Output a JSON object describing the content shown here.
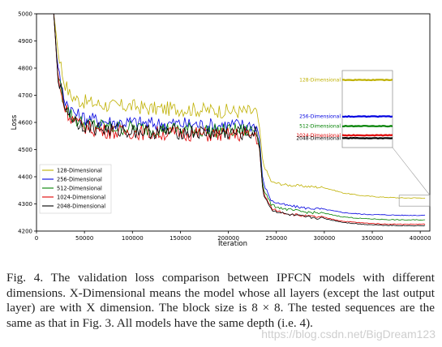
{
  "chart_data": {
    "type": "line",
    "xlabel": "Iteration",
    "ylabel": "Loss",
    "xlim": [
      0,
      410000
    ],
    "ylim": [
      4200,
      5000
    ],
    "xticks": [
      0,
      50000,
      100000,
      150000,
      200000,
      250000,
      300000,
      350000,
      400000
    ],
    "yticks": [
      4200,
      4300,
      4400,
      4500,
      4600,
      4700,
      4800,
      4900,
      5000
    ],
    "legend_position": "lower-left",
    "inset": {
      "position": "right",
      "zoom_region_x": [
        378000,
        410000
      ],
      "zoom_region_y": [
        4292,
        4332
      ]
    },
    "series": [
      {
        "name": "128-Dimensional",
        "color": "#bfb000",
        "values": [
          {
            "x": 0,
            "y": 5000
          },
          {
            "x": 18000,
            "y": 5000
          },
          {
            "x": 22000,
            "y": 4880
          },
          {
            "x": 28000,
            "y": 4760
          },
          {
            "x": 35000,
            "y": 4700
          },
          {
            "x": 45000,
            "y": 4680
          },
          {
            "x": 60000,
            "y": 4670
          },
          {
            "x": 80000,
            "y": 4660
          },
          {
            "x": 100000,
            "y": 4660
          },
          {
            "x": 120000,
            "y": 4650
          },
          {
            "x": 150000,
            "y": 4650
          },
          {
            "x": 180000,
            "y": 4645
          },
          {
            "x": 210000,
            "y": 4640
          },
          {
            "x": 228000,
            "y": 4640
          },
          {
            "x": 232000,
            "y": 4600
          },
          {
            "x": 236000,
            "y": 4450
          },
          {
            "x": 245000,
            "y": 4380
          },
          {
            "x": 260000,
            "y": 4370
          },
          {
            "x": 280000,
            "y": 4365
          },
          {
            "x": 300000,
            "y": 4360
          },
          {
            "x": 320000,
            "y": 4340
          },
          {
            "x": 340000,
            "y": 4330
          },
          {
            "x": 360000,
            "y": 4325
          },
          {
            "x": 380000,
            "y": 4322
          },
          {
            "x": 405000,
            "y": 4322
          }
        ]
      },
      {
        "name": "256-Dimensional",
        "color": "#0000e0",
        "values": [
          {
            "x": 0,
            "y": 5000
          },
          {
            "x": 18000,
            "y": 5000
          },
          {
            "x": 22000,
            "y": 4800
          },
          {
            "x": 28000,
            "y": 4700
          },
          {
            "x": 35000,
            "y": 4650
          },
          {
            "x": 45000,
            "y": 4620
          },
          {
            "x": 60000,
            "y": 4610
          },
          {
            "x": 80000,
            "y": 4600
          },
          {
            "x": 100000,
            "y": 4600
          },
          {
            "x": 120000,
            "y": 4595
          },
          {
            "x": 150000,
            "y": 4595
          },
          {
            "x": 180000,
            "y": 4590
          },
          {
            "x": 210000,
            "y": 4590
          },
          {
            "x": 228000,
            "y": 4590
          },
          {
            "x": 232000,
            "y": 4560
          },
          {
            "x": 236000,
            "y": 4380
          },
          {
            "x": 245000,
            "y": 4310
          },
          {
            "x": 260000,
            "y": 4295
          },
          {
            "x": 280000,
            "y": 4285
          },
          {
            "x": 300000,
            "y": 4280
          },
          {
            "x": 320000,
            "y": 4268
          },
          {
            "x": 340000,
            "y": 4262
          },
          {
            "x": 360000,
            "y": 4260
          },
          {
            "x": 380000,
            "y": 4258
          },
          {
            "x": 405000,
            "y": 4258
          }
        ]
      },
      {
        "name": "512-Dimensional",
        "color": "#008000",
        "values": [
          {
            "x": 0,
            "y": 5000
          },
          {
            "x": 18000,
            "y": 5000
          },
          {
            "x": 22000,
            "y": 4790
          },
          {
            "x": 28000,
            "y": 4680
          },
          {
            "x": 35000,
            "y": 4630
          },
          {
            "x": 45000,
            "y": 4600
          },
          {
            "x": 60000,
            "y": 4590
          },
          {
            "x": 80000,
            "y": 4580
          },
          {
            "x": 100000,
            "y": 4580
          },
          {
            "x": 120000,
            "y": 4575
          },
          {
            "x": 150000,
            "y": 4575
          },
          {
            "x": 180000,
            "y": 4570
          },
          {
            "x": 210000,
            "y": 4570
          },
          {
            "x": 228000,
            "y": 4570
          },
          {
            "x": 232000,
            "y": 4540
          },
          {
            "x": 236000,
            "y": 4360
          },
          {
            "x": 245000,
            "y": 4295
          },
          {
            "x": 260000,
            "y": 4280
          },
          {
            "x": 280000,
            "y": 4270
          },
          {
            "x": 300000,
            "y": 4265
          },
          {
            "x": 320000,
            "y": 4252
          },
          {
            "x": 340000,
            "y": 4246
          },
          {
            "x": 360000,
            "y": 4243
          },
          {
            "x": 380000,
            "y": 4241
          },
          {
            "x": 405000,
            "y": 4241
          }
        ]
      },
      {
        "name": "1024-Dimensional",
        "color": "#e00000",
        "values": [
          {
            "x": 0,
            "y": 5000
          },
          {
            "x": 18000,
            "y": 5000
          },
          {
            "x": 22000,
            "y": 4780
          },
          {
            "x": 28000,
            "y": 4670
          },
          {
            "x": 35000,
            "y": 4620
          },
          {
            "x": 45000,
            "y": 4590
          },
          {
            "x": 60000,
            "y": 4575
          },
          {
            "x": 80000,
            "y": 4565
          },
          {
            "x": 100000,
            "y": 4565
          },
          {
            "x": 120000,
            "y": 4560
          },
          {
            "x": 150000,
            "y": 4560
          },
          {
            "x": 180000,
            "y": 4555
          },
          {
            "x": 210000,
            "y": 4555
          },
          {
            "x": 228000,
            "y": 4555
          },
          {
            "x": 232000,
            "y": 4525
          },
          {
            "x": 236000,
            "y": 4345
          },
          {
            "x": 245000,
            "y": 4282
          },
          {
            "x": 260000,
            "y": 4265
          },
          {
            "x": 280000,
            "y": 4255
          },
          {
            "x": 300000,
            "y": 4250
          },
          {
            "x": 320000,
            "y": 4236
          },
          {
            "x": 340000,
            "y": 4230
          },
          {
            "x": 360000,
            "y": 4226
          },
          {
            "x": 380000,
            "y": 4225
          },
          {
            "x": 405000,
            "y": 4225
          }
        ]
      },
      {
        "name": "2048-Dimensional",
        "color": "#000000",
        "values": [
          {
            "x": 0,
            "y": 5000
          },
          {
            "x": 18000,
            "y": 5000
          },
          {
            "x": 22000,
            "y": 4785
          },
          {
            "x": 28000,
            "y": 4675
          },
          {
            "x": 35000,
            "y": 4625
          },
          {
            "x": 45000,
            "y": 4595
          },
          {
            "x": 60000,
            "y": 4580
          },
          {
            "x": 80000,
            "y": 4570
          },
          {
            "x": 100000,
            "y": 4570
          },
          {
            "x": 120000,
            "y": 4565
          },
          {
            "x": 150000,
            "y": 4565
          },
          {
            "x": 180000,
            "y": 4560
          },
          {
            "x": 210000,
            "y": 4560
          },
          {
            "x": 228000,
            "y": 4560
          },
          {
            "x": 232000,
            "y": 4530
          },
          {
            "x": 236000,
            "y": 4340
          },
          {
            "x": 245000,
            "y": 4278
          },
          {
            "x": 260000,
            "y": 4262
          },
          {
            "x": 280000,
            "y": 4252
          },
          {
            "x": 300000,
            "y": 4246
          },
          {
            "x": 320000,
            "y": 4232
          },
          {
            "x": 340000,
            "y": 4225
          },
          {
            "x": 360000,
            "y": 4222
          },
          {
            "x": 380000,
            "y": 4220
          },
          {
            "x": 405000,
            "y": 4220
          }
        ]
      }
    ]
  },
  "caption": "Fig. 4.   The validation loss comparison between IPFCN models with different dimensions. X-Dimensional means the model whose all layers (except the last output layer) are with X dimension. The block size is 8 × 8. The tested sequences are the same as that in Fig. 3. All models have the same depth (i.e. 4).",
  "watermark": "https://blog.csdn.net/BigDream123"
}
